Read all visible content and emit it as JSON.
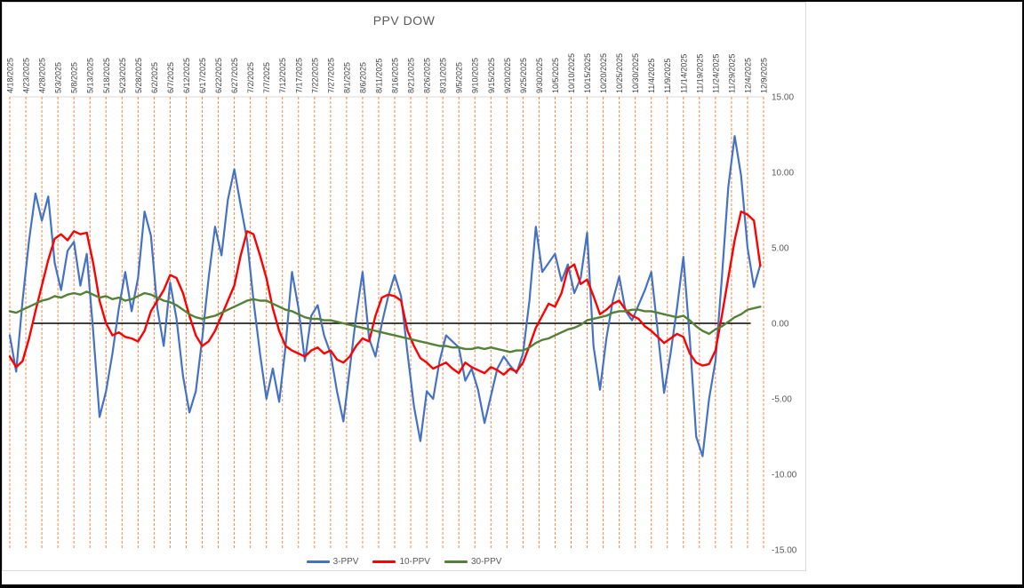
{
  "chart_data": {
    "type": "line",
    "title": "PPV DOW",
    "legend_position": "bottom",
    "gridline_color": "#ED7D31",
    "gridline_style": "dashed-vertical",
    "x_axis": {
      "tick_step": 5,
      "point_step": 2,
      "max_day": 235,
      "categories": [
        "4/18/2025",
        "4/23/2025",
        "4/28/2025",
        "5/3/2025",
        "5/8/2025",
        "5/13/2025",
        "5/18/2025",
        "5/23/2025",
        "5/28/2025",
        "6/2/2025",
        "6/7/2025",
        "6/12/2025",
        "6/17/2025",
        "6/22/2025",
        "6/27/2025",
        "7/2/2025",
        "7/7/2025",
        "7/12/2025",
        "7/17/2025",
        "7/22/2025",
        "7/27/2025",
        "8/1/2025",
        "8/6/2025",
        "8/11/2025",
        "8/16/2025",
        "8/21/2025",
        "8/26/2025",
        "8/31/2025",
        "9/5/2025",
        "9/10/2025",
        "9/15/2025",
        "9/20/2025",
        "9/25/2025",
        "9/30/2025",
        "10/5/2025",
        "10/10/2025",
        "10/15/2025",
        "10/20/2025",
        "10/25/2025",
        "10/30/2025",
        "11/4/2025",
        "11/9/2025",
        "11/14/2025",
        "11/19/2025",
        "11/24/2025",
        "11/29/2025",
        "12/4/2025",
        "12/9/2025"
      ]
    },
    "y_axis": {
      "min": -15,
      "max": 15,
      "ticks": [
        {
          "label": "15.00",
          "value": 15
        },
        {
          "label": "10.00",
          "value": 10
        },
        {
          "label": "5.00",
          "value": 5
        },
        {
          "label": "0.00",
          "value": 0
        },
        {
          "label": "-5.00",
          "value": -5
        },
        {
          "label": "-10.00",
          "value": -10
        },
        {
          "label": "-15.00",
          "value": -15
        }
      ]
    },
    "zero_line": {
      "start_day": 7,
      "end_day": 231,
      "color": "#000000"
    },
    "series": [
      {
        "name": "3-PPV",
        "color": "#4472C4",
        "width": 2.2,
        "values": [
          -0.8,
          -3.2,
          1.5,
          5.5,
          8.6,
          6.8,
          8.4,
          4.0,
          2.2,
          4.8,
          5.4,
          2.5,
          4.6,
          -0.5,
          -6.2,
          -4.5,
          -2.0,
          1.0,
          3.4,
          0.8,
          3.0,
          7.4,
          5.8,
          1.0,
          -1.5,
          2.7,
          0.3,
          -3.5,
          -5.9,
          -4.5,
          -1.0,
          3.0,
          6.4,
          4.5,
          8.2,
          10.2,
          7.8,
          5.5,
          1.5,
          -2.0,
          -5.0,
          -3.0,
          -5.2,
          -1.5,
          3.4,
          1.0,
          -2.5,
          0.5,
          1.2,
          -0.8,
          -2.0,
          -4.5,
          -6.5,
          -3.0,
          0.5,
          3.4,
          -1.0,
          -2.2,
          0.0,
          1.8,
          3.2,
          1.8,
          -2.0,
          -5.5,
          -7.8,
          -4.5,
          -5.0,
          -2.5,
          -0.8,
          -1.2,
          -1.6,
          -3.8,
          -3.0,
          -4.4,
          -6.6,
          -4.8,
          -3.0,
          -2.2,
          -2.8,
          -3.3,
          -2.0,
          1.5,
          6.4,
          3.4,
          4.0,
          4.6,
          2.8,
          3.9,
          2.0,
          3.0,
          6.0,
          -1.5,
          -4.4,
          -1.0,
          1.5,
          3.1,
          0.8,
          0.2,
          1.2,
          2.2,
          3.4,
          -0.5,
          -4.6,
          -2.0,
          1.0,
          4.4,
          -1.0,
          -7.5,
          -8.8,
          -5.0,
          -2.5,
          3.0,
          9.0,
          12.4,
          9.8,
          5.0,
          2.4,
          3.9
        ]
      },
      {
        "name": "10-PPV",
        "color": "#FF0000",
        "width": 2.4,
        "values": [
          -2.2,
          -2.9,
          -2.5,
          -1.0,
          0.8,
          2.5,
          4.2,
          5.6,
          5.9,
          5.5,
          6.1,
          5.9,
          6.0,
          4.0,
          1.5,
          0.0,
          -0.8,
          -0.6,
          -0.9,
          -1.0,
          -1.2,
          -0.5,
          0.8,
          1.5,
          2.2,
          3.2,
          3.0,
          2.0,
          0.5,
          -0.8,
          -1.5,
          -1.2,
          -0.5,
          0.5,
          1.5,
          2.5,
          4.5,
          6.1,
          5.9,
          4.5,
          3.0,
          1.0,
          -0.5,
          -1.5,
          -1.8,
          -2.0,
          -2.2,
          -1.8,
          -1.6,
          -2.0,
          -1.8,
          -2.4,
          -2.6,
          -2.2,
          -1.5,
          -1.0,
          -1.2,
          0.5,
          1.7,
          1.9,
          1.8,
          1.5,
          -0.5,
          -1.5,
          -2.3,
          -2.6,
          -3.0,
          -2.8,
          -2.6,
          -3.0,
          -3.3,
          -2.6,
          -2.9,
          -3.1,
          -3.3,
          -2.9,
          -3.1,
          -3.4,
          -3.0,
          -3.2,
          -2.6,
          -1.5,
          -0.3,
          0.5,
          1.3,
          1.1,
          2.0,
          3.6,
          3.9,
          2.6,
          2.9,
          1.8,
          0.6,
          0.9,
          1.3,
          1.5,
          0.9,
          0.5,
          0.3,
          -0.2,
          -0.5,
          -0.9,
          -1.3,
          -1.0,
          -0.7,
          -0.9,
          -2.0,
          -2.6,
          -2.8,
          -2.7,
          -1.8,
          0.5,
          3.0,
          5.5,
          7.4,
          7.2,
          6.8,
          3.8
        ]
      },
      {
        "name": "30-PPV",
        "color": "#538135",
        "width": 2.4,
        "values": [
          0.8,
          0.7,
          0.9,
          1.1,
          1.3,
          1.5,
          1.6,
          1.8,
          1.7,
          1.9,
          2.0,
          1.9,
          2.1,
          1.9,
          1.7,
          1.8,
          1.6,
          1.7,
          1.5,
          1.6,
          1.8,
          2.0,
          1.9,
          1.7,
          1.5,
          1.4,
          1.2,
          0.9,
          0.6,
          0.4,
          0.3,
          0.4,
          0.5,
          0.7,
          0.9,
          1.1,
          1.3,
          1.5,
          1.6,
          1.5,
          1.5,
          1.3,
          1.1,
          0.9,
          0.8,
          0.6,
          0.4,
          0.3,
          0.3,
          0.2,
          0.2,
          0.1,
          0.0,
          -0.1,
          -0.2,
          -0.3,
          -0.4,
          -0.5,
          -0.6,
          -0.7,
          -0.8,
          -0.9,
          -1.0,
          -1.1,
          -1.2,
          -1.3,
          -1.4,
          -1.5,
          -1.5,
          -1.6,
          -1.6,
          -1.7,
          -1.7,
          -1.6,
          -1.7,
          -1.6,
          -1.7,
          -1.8,
          -1.9,
          -1.8,
          -1.8,
          -1.6,
          -1.3,
          -1.1,
          -1.0,
          -0.8,
          -0.6,
          -0.4,
          -0.3,
          -0.1,
          0.2,
          0.3,
          0.4,
          0.5,
          0.7,
          0.8,
          0.8,
          0.9,
          0.9,
          0.8,
          0.8,
          0.7,
          0.6,
          0.5,
          0.4,
          0.5,
          0.2,
          -0.2,
          -0.5,
          -0.7,
          -0.4,
          -0.2,
          0.1,
          0.4,
          0.6,
          0.9,
          1.0,
          1.1
        ]
      }
    ]
  }
}
